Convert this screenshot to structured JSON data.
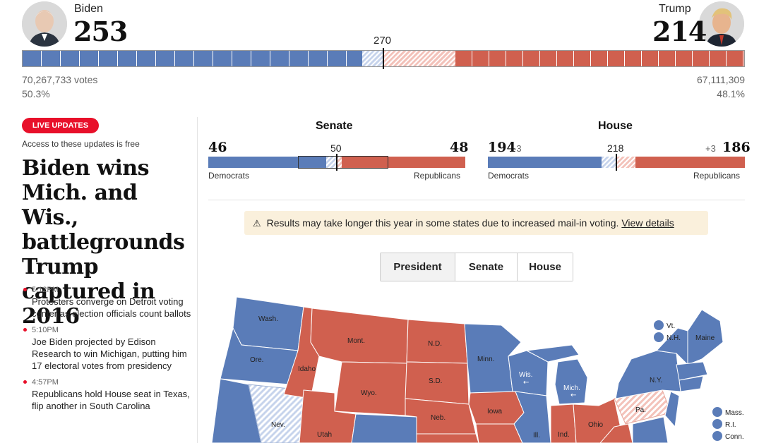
{
  "president": {
    "dem": {
      "name": "Biden",
      "electoral_votes": "253",
      "popular_votes": "70,267,733 votes",
      "percent": "50.3%"
    },
    "rep": {
      "name": "Trump",
      "electoral_votes": "214",
      "popular_votes": "67,111,309",
      "percent": "48.1%"
    },
    "threshold": "270",
    "bar": {
      "dem_won": 253,
      "dem_leaning": 17,
      "rep_leaning": 54,
      "rep_won": 214,
      "total": 538
    }
  },
  "live": {
    "badge": "LIVE UPDATES",
    "free_note": "Access to these updates is free",
    "headline": "Biden wins Mich. and Wis., battlegrounds Trump captured in 2016",
    "updates": [
      {
        "time": "5:12PM",
        "text": "Protesters converge on Detroit voting center as election officials count ballots"
      },
      {
        "time": "5:10PM",
        "text": "Joe Biden projected by Edison Research to win Michigan, putting him 17 electoral votes from presidency"
      },
      {
        "time": "4:57PM",
        "text": "Republicans hold House seat in Texas, flip another in South Carolina"
      }
    ]
  },
  "senate": {
    "title": "Senate",
    "dem": "46",
    "rep": "48",
    "majority": "50",
    "dem_label": "Democrats",
    "rep_label": "Republicans",
    "seats": {
      "dem": 46,
      "dem_leaning": 2,
      "rep_leaning": 1,
      "rep": 48,
      "undecided_box": true,
      "total": 100
    }
  },
  "house": {
    "title": "House",
    "dem": "194",
    "dem_delta": "-3",
    "rep": "186",
    "rep_delta": "+3",
    "majority": "218",
    "dem_label": "Democrats",
    "rep_label": "Republicans",
    "seats": {
      "dem": 194,
      "dem_leaning": 12,
      "rep_leaning": 15,
      "rep": 186,
      "total": 435
    }
  },
  "notice": {
    "icon": "warning-icon",
    "text": "Results may take longer this year in some states due to increased mail-in voting.",
    "link": "View details"
  },
  "tabs": [
    "President",
    "Senate",
    "House"
  ],
  "active_tab": "President",
  "map": {
    "states": [
      "Wash.",
      "Ore.",
      "Idaho",
      "Mont.",
      "Wyo.",
      "N.D.",
      "S.D.",
      "Neb.",
      "Nev.",
      "Utah",
      "Minn.",
      "Wis.",
      "Mich.",
      "Iowa",
      "Ill.",
      "Ind.",
      "Ohio",
      "Pa.",
      "N.Y.",
      "Maine"
    ],
    "legend_states": [
      "Vt.",
      "N.H.",
      "Mass.",
      "R.I.",
      "Conn."
    ]
  },
  "colors": {
    "dem": "#5a7cb8",
    "rep": "#d0604f",
    "alert": "#e8102a",
    "notice_bg": "#faf0dc"
  }
}
